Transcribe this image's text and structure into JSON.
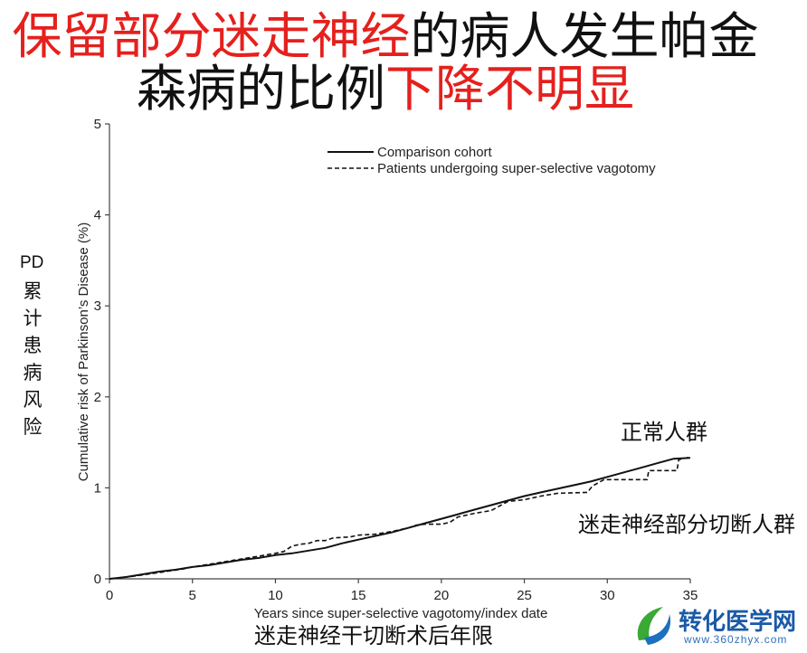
{
  "title": {
    "line1_red": "保留部分迷走神经",
    "line1_black": "的病人发生帕金",
    "line2_black": "森病的比例",
    "line2_red": "下降不明显"
  },
  "left_label": {
    "line1": "PD",
    "line2": "累计患病风险"
  },
  "annotations": {
    "normal_group": "正常人群",
    "vagotomy_group": "迷走神经部分切断人群",
    "x_caption": "迷走神经干切断术后年限"
  },
  "logo": {
    "icon": "leaf-swirl-icon",
    "name": "转化医学网",
    "url": "www.360zhyx.com"
  },
  "colors": {
    "title_red": "#e5201d",
    "text": "#111111",
    "axis": "#444444",
    "logo_blue": "#1a5aa8",
    "logo_url": "#2f6fba",
    "logo_green": "#3aa935"
  },
  "chart_data": {
    "type": "line",
    "xlabel": "Years since super-selective vagotomy/index date",
    "ylabel": "Cumulative risk of Parkinson’s Disease (%)",
    "xlim": [
      0,
      35
    ],
    "ylim": [
      0,
      5
    ],
    "xticks": [
      0,
      5,
      10,
      15,
      20,
      25,
      30,
      35
    ],
    "yticks": [
      0,
      1,
      2,
      3,
      4,
      5
    ],
    "grid": false,
    "legend_position": "top-center",
    "series": [
      {
        "name": "Comparison cohort",
        "dashed": false,
        "x": [
          0,
          1,
          2,
          3,
          4,
          5,
          6,
          7,
          8,
          9,
          10,
          11,
          12,
          13,
          14,
          15,
          16,
          17,
          18,
          19,
          20,
          21,
          22,
          23,
          24,
          25,
          26,
          27,
          28,
          29,
          30,
          31,
          32,
          33,
          34,
          35
        ],
        "y": [
          0,
          0.02,
          0.05,
          0.08,
          0.1,
          0.13,
          0.15,
          0.18,
          0.21,
          0.23,
          0.26,
          0.28,
          0.31,
          0.34,
          0.39,
          0.43,
          0.47,
          0.51,
          0.56,
          0.61,
          0.66,
          0.71,
          0.76,
          0.81,
          0.86,
          0.91,
          0.95,
          0.99,
          1.03,
          1.07,
          1.12,
          1.17,
          1.22,
          1.27,
          1.32,
          1.33
        ]
      },
      {
        "name": "Patients undergoing super-selective vagotomy",
        "dashed": true,
        "x": [
          0,
          1.5,
          3,
          4.5,
          5,
          6,
          7,
          8,
          9,
          10,
          10.5,
          11,
          11.5,
          12,
          12.5,
          13,
          13.5,
          14.5,
          15,
          16,
          17,
          18,
          18.5,
          19,
          20,
          20.5,
          21,
          22,
          23,
          23.5,
          24,
          25,
          26,
          27,
          28.8,
          29.1,
          29.8,
          32.4,
          32.5,
          34.2,
          34.3,
          35
        ],
        "y": [
          0,
          0.03,
          0.07,
          0.11,
          0.13,
          0.16,
          0.19,
          0.22,
          0.25,
          0.28,
          0.3,
          0.36,
          0.38,
          0.39,
          0.42,
          0.42,
          0.45,
          0.46,
          0.48,
          0.49,
          0.52,
          0.56,
          0.59,
          0.6,
          0.6,
          0.62,
          0.68,
          0.72,
          0.75,
          0.8,
          0.85,
          0.87,
          0.91,
          0.94,
          0.95,
          1.02,
          1.09,
          1.09,
          1.19,
          1.19,
          1.31,
          1.34
        ]
      }
    ]
  }
}
